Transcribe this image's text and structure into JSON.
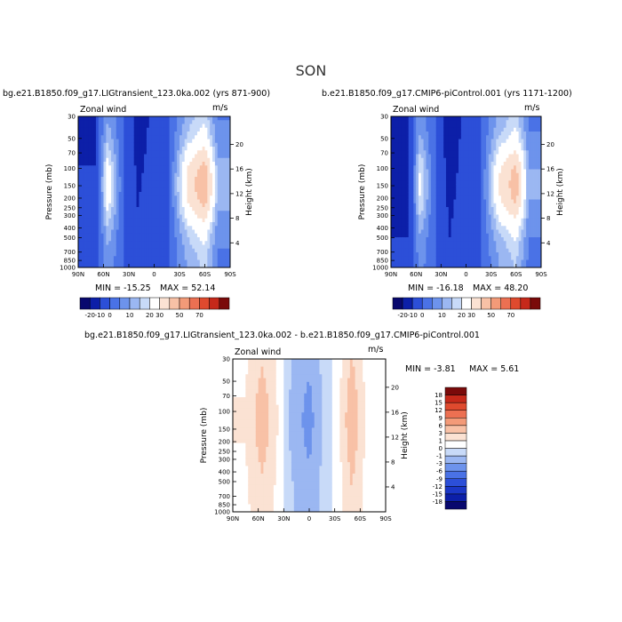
{
  "figure": {
    "season": "SON"
  },
  "panels": [
    {
      "title": "bg.e21.B1850.f09_g17.LIGtransient_123.0ka.002 (yrs 871-900)",
      "field_label": "Zonal wind",
      "units": "m/s",
      "min_label": "MIN = -15.25",
      "max_label": "MAX = 52.14"
    },
    {
      "title": "b.e21.B1850.f09_g17.CMIP6-piControl.001 (yrs 1171-1200)",
      "field_label": "Zonal wind",
      "units": "m/s",
      "min_label": "MIN = -16.18",
      "max_label": "MAX = 48.20"
    },
    {
      "title": "bg.e21.B1850.f09_g17.LIGtransient_123.0ka.002 - b.e21.B1850.f09_g17.CMIP6-piControl.001",
      "field_label": "Zonal wind",
      "units": "m/s",
      "min_label": "MIN = -3.81",
      "max_label": "MAX = 5.61"
    }
  ],
  "chart_data": [
    {
      "type": "heatmap",
      "title": "bg.e21.B1850.f09_g17.LIGtransient_123.0ka.002 (yrs 871-900)",
      "xlabel": "",
      "ylabel": "Pressure (mb)",
      "y2label": "Height (km)",
      "x_ticks": [
        "90N",
        "60N",
        "30N",
        "0",
        "30S",
        "60S",
        "90S"
      ],
      "x_range": [
        90,
        -90
      ],
      "y_ticks": [
        30,
        50,
        70,
        100,
        150,
        200,
        250,
        300,
        400,
        500,
        700,
        850,
        1000
      ],
      "y_range": [
        1000,
        30
      ],
      "y_scale": "log",
      "y2_ticks": [
        4,
        8,
        12,
        16,
        20
      ],
      "color_levels": [
        -20,
        -10,
        0,
        5,
        10,
        15,
        20,
        30,
        40,
        50,
        60,
        70
      ],
      "colorbar_labels": [
        "-20",
        "-10",
        "0",
        "10",
        "20",
        "30",
        "50",
        "70"
      ],
      "colors": [
        "#08086e",
        "#0c1fa8",
        "#2c4fd8",
        "#4a72e6",
        "#6d93ec",
        "#9bb7f2",
        "#c8daf8",
        "#ffffff",
        "#fbe2d3",
        "#f8c1a6",
        "#f39a78",
        "#ec7052",
        "#df4a2e",
        "#c6291a",
        "#7a0a0a"
      ],
      "min": -15.25,
      "max": 52.14,
      "anchors": [
        [
          70,
          -10
        ],
        [
          55,
          24
        ],
        [
          40,
          4
        ],
        [
          20,
          -12
        ],
        [
          5,
          -8
        ],
        [
          -15,
          -5
        ],
        [
          -40,
          30
        ],
        [
          -60,
          45
        ],
        [
          -75,
          12
        ]
      ],
      "grid": false
    },
    {
      "type": "heatmap",
      "title": "b.e21.B1850.f09_g17.CMIP6-piControl.001 (yrs 1171-1200)",
      "xlabel": "",
      "ylabel": "Pressure (mb)",
      "y2label": "Height (km)",
      "x_ticks": [
        "90N",
        "60N",
        "30N",
        "0",
        "30S",
        "60S",
        "90S"
      ],
      "x_range": [
        90,
        -90
      ],
      "y_ticks": [
        30,
        50,
        70,
        100,
        150,
        200,
        250,
        300,
        400,
        500,
        700,
        850,
        1000
      ],
      "y_range": [
        1000,
        30
      ],
      "y_scale": "log",
      "y2_ticks": [
        4,
        8,
        12,
        16,
        20
      ],
      "color_levels": [
        -20,
        -10,
        0,
        5,
        10,
        15,
        20,
        30,
        40,
        50,
        60,
        70
      ],
      "colorbar_labels": [
        "-20",
        "-10",
        "0",
        "10",
        "20",
        "30",
        "50",
        "70"
      ],
      "colors": [
        "#08086e",
        "#0c1fa8",
        "#2c4fd8",
        "#4a72e6",
        "#6d93ec",
        "#9bb7f2",
        "#c8daf8",
        "#ffffff",
        "#fbe2d3",
        "#f8c1a6",
        "#f39a78",
        "#ec7052",
        "#df4a2e",
        "#c6291a",
        "#7a0a0a"
      ],
      "min": -16.18,
      "max": 48.2,
      "anchors": [
        [
          70,
          -14
        ],
        [
          55,
          20
        ],
        [
          40,
          2
        ],
        [
          20,
          -14
        ],
        [
          5,
          -8
        ],
        [
          -15,
          -5
        ],
        [
          -40,
          28
        ],
        [
          -60,
          42
        ],
        [
          -75,
          10
        ]
      ],
      "grid": false
    },
    {
      "type": "heatmap",
      "title": "bg.e21.B1850.f09_g17.LIGtransient_123.0ka.002 - b.e21.B1850.f09_g17.CMIP6-piControl.001",
      "xlabel": "",
      "ylabel": "Pressure (mb)",
      "y2label": "Height (km)",
      "x_ticks": [
        "90N",
        "60N",
        "30N",
        "0",
        "30S",
        "60S",
        "90S"
      ],
      "x_range": [
        90,
        -90
      ],
      "y_ticks": [
        30,
        50,
        70,
        100,
        150,
        200,
        250,
        300,
        400,
        500,
        700,
        850,
        1000
      ],
      "y_range": [
        1000,
        30
      ],
      "y_scale": "log",
      "y2_ticks": [
        4,
        8,
        12,
        16,
        20
      ],
      "color_levels": [
        -18,
        -15,
        -12,
        -9,
        -6,
        -3,
        -1,
        0,
        1,
        3,
        6,
        9,
        12,
        15,
        18
      ],
      "colorbar_labels": [
        "-18",
        "-15",
        "-12",
        "-9",
        "-6",
        "-3",
        "-1",
        "0",
        "1",
        "3",
        "6",
        "9",
        "12",
        "15",
        "18"
      ],
      "colors": [
        "#08086e",
        "#0c1fa8",
        "#1b37c6",
        "#2c4fd8",
        "#4a72e6",
        "#6d93ec",
        "#9bb7f2",
        "#c8daf8",
        "#ffffff",
        "#fbe2d3",
        "#f8c1a6",
        "#f39a78",
        "#ec7052",
        "#df4a2e",
        "#c6291a",
        "#7a0a0a"
      ],
      "min": -3.81,
      "max": 5.61,
      "anchors": [
        [
          75,
          1
        ],
        [
          55,
          4
        ],
        [
          35,
          0.5
        ],
        [
          15,
          -2
        ],
        [
          0,
          -3.5
        ],
        [
          -15,
          -1
        ],
        [
          -35,
          0.5
        ],
        [
          -50,
          4.5
        ],
        [
          -65,
          1
        ],
        [
          -85,
          0
        ]
      ],
      "grid": false
    }
  ]
}
